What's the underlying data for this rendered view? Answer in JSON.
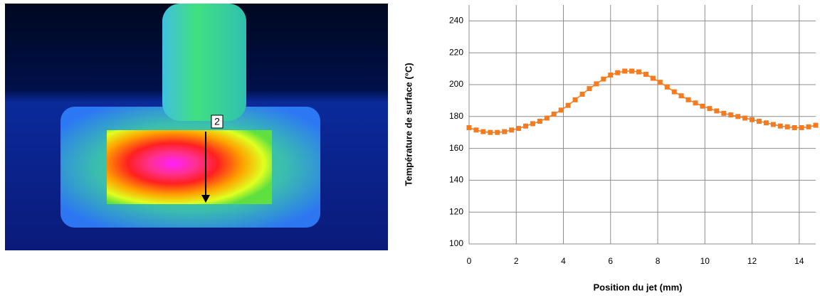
{
  "thermal_image": {
    "marker_label": "2"
  },
  "chart_data": {
    "type": "line",
    "x_label": "Position du jet (mm)",
    "y_label": "Température de surface (°C)",
    "x": [
      0,
      0.3,
      0.6,
      0.9,
      1.2,
      1.5,
      1.8,
      2.1,
      2.4,
      2.7,
      3.0,
      3.3,
      3.6,
      3.9,
      4.2,
      4.5,
      4.8,
      5.1,
      5.4,
      5.7,
      6.0,
      6.3,
      6.6,
      6.9,
      7.2,
      7.5,
      7.8,
      8.1,
      8.4,
      8.7,
      9.0,
      9.3,
      9.6,
      9.9,
      10.2,
      10.5,
      10.8,
      11.1,
      11.4,
      11.7,
      12.0,
      12.3,
      12.6,
      12.9,
      13.2,
      13.5,
      13.8,
      14.1,
      14.4,
      14.7
    ],
    "series": [
      {
        "color": "#f47b20",
        "values": [
          173,
          171.5,
          170.5,
          170,
          170,
          170.5,
          171.5,
          172.5,
          174,
          175.5,
          177,
          179,
          181.5,
          184,
          187,
          190.5,
          194,
          197.5,
          200.5,
          203.5,
          206,
          207.5,
          208.5,
          208.5,
          208,
          206.5,
          204,
          201.5,
          198.5,
          195.5,
          193,
          190.5,
          188.5,
          186.5,
          185,
          183.5,
          182,
          181,
          180,
          179,
          178,
          177,
          176,
          175,
          174,
          173.5,
          173,
          173,
          173.5,
          174.5
        ]
      }
    ],
    "xlim": [
      0,
      14.7
    ],
    "xticks": [
      0,
      2,
      4,
      6,
      8,
      10,
      12,
      14
    ],
    "ylim": [
      100,
      250
    ],
    "yticks": [
      100,
      120,
      140,
      160,
      180,
      200,
      220,
      240
    ],
    "grid": true
  }
}
